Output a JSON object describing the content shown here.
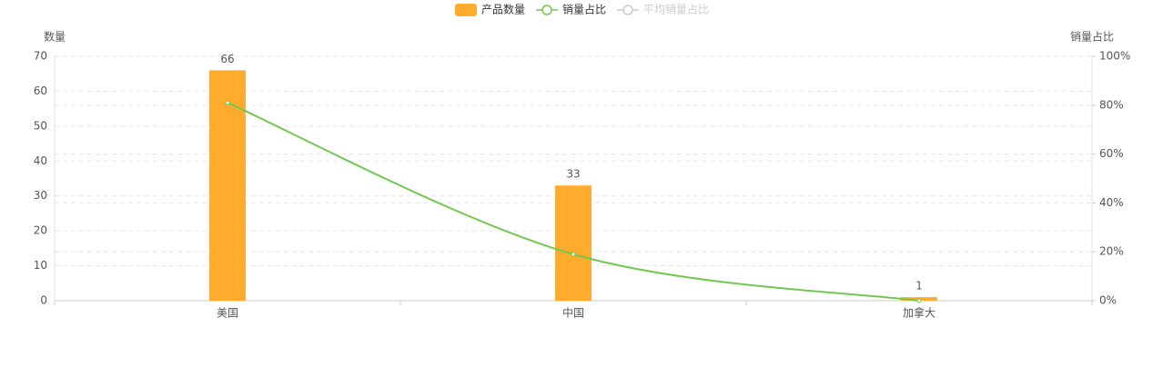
{
  "chart_data": {
    "type": "bar-line",
    "y_axis_label": "数量",
    "y2_axis_label": "销量占比",
    "categories": [
      "美国",
      "中国",
      "加拿大"
    ],
    "series": [
      {
        "name": "产品数量",
        "type": "bar",
        "color": "#ffac2e",
        "values": [
          66,
          33,
          1
        ]
      },
      {
        "name": "销量占比",
        "type": "line",
        "axis": "y2",
        "color": "#72c84f",
        "values": [
          81,
          19,
          0
        ]
      }
    ],
    "hidden_series": [
      {
        "name": "平均销量占比",
        "color": "#cccccc"
      }
    ],
    "ylim": [
      0,
      70
    ],
    "yticks": [
      0,
      10,
      20,
      30,
      40,
      50,
      60,
      70
    ],
    "y2lim": [
      0,
      100
    ],
    "y2ticks": [
      {
        "value": 0,
        "label": "0%"
      },
      {
        "value": 20,
        "label": "20%"
      },
      {
        "value": 40,
        "label": "40%"
      },
      {
        "value": 60,
        "label": "60%"
      },
      {
        "value": 80,
        "label": "80%"
      },
      {
        "value": 100,
        "label": "100%"
      }
    ],
    "grid": true,
    "legend": "top"
  }
}
